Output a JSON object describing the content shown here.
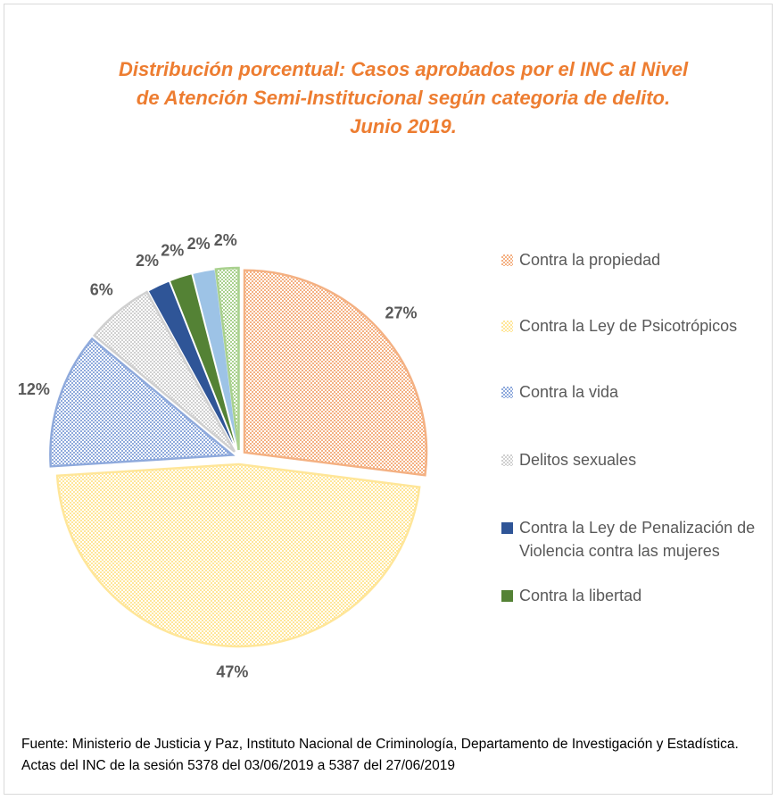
{
  "chart_data": {
    "type": "pie",
    "title": "Distribución porcentual: Casos aprobados por el INC al Nivel de Atención Semi-Institucional según categoria de delito. Junio 2019.",
    "categories": [
      "Contra la propiedad",
      "Contra la Ley de Psicotrópicos",
      "Contra la vida",
      "Delitos sexuales",
      "Contra la Ley de Penalización de Violencia contra las mujeres",
      "Contra la libertad",
      null,
      null
    ],
    "values": [
      27,
      47,
      12,
      6,
      2,
      2,
      2,
      2
    ],
    "value_labels": [
      "27%",
      "47%",
      "12%",
      "6%",
      "2%",
      "2%",
      "2%",
      "2%"
    ],
    "colors": [
      "#f4b183",
      "#ffe699",
      "#8faadc",
      "#d0d0d0",
      "#2f5597",
      "#548235",
      "#9dc3e6",
      "#a9d18e"
    ],
    "patterned": [
      true,
      true,
      true,
      true,
      false,
      false,
      false,
      true
    ],
    "source": "Fuente: Ministerio de Justicia y Paz, Instituto Nacional de Criminología, Departamento de Investigación y Estadística. Actas del INC de la sesión 5378 del 03/06/2019 a 5387 del 27/06/2019"
  }
}
